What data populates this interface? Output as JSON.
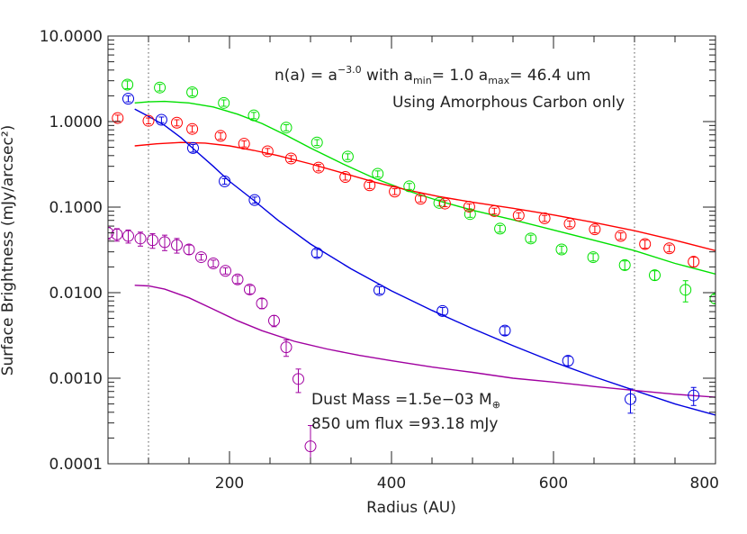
{
  "chart_data": {
    "type": "scatter",
    "xlabel": "Radius (AU)",
    "ylabel": "Surface Brightness (mJy/arcsec²)",
    "xlim": [
      50,
      800
    ],
    "ylim": [
      0.0001,
      10
    ],
    "yscale": "log",
    "x_ticks": [
      200,
      400,
      600,
      800
    ],
    "x_tick_labels": [
      "200",
      "400",
      "600",
      "800"
    ],
    "y_ticks": [
      0.0001,
      0.001,
      0.01,
      0.1,
      1,
      10
    ],
    "y_tick_labels": [
      "0.0001",
      "0.0010",
      "0.0100",
      "0.1000",
      "1.0000",
      "10.0000"
    ],
    "vlines": [
      100,
      700
    ],
    "annotations": {
      "line1": {
        "prefix": "n(a) = a",
        "exp": "−3.0",
        "mid": " with a",
        "sub1": "min",
        "mid2": "= 1.0 a",
        "sub2": "max",
        "suffix": "= 46.4 um"
      },
      "line2": "Using Amorphous Carbon only",
      "line3": {
        "prefix": "Dust Mass =1.5e−03 M",
        "sub": "⊕"
      },
      "line4": "850 um flux =93.18 mJy"
    },
    "series": [
      {
        "color": "#00e000",
        "points": [
          {
            "x": 74,
            "y": 2.7,
            "err": 0.28
          },
          {
            "x": 114,
            "y": 2.5,
            "err": 0.22
          },
          {
            "x": 154,
            "y": 2.2,
            "err": 0.2
          },
          {
            "x": 193,
            "y": 1.65,
            "err": 0.14
          },
          {
            "x": 230,
            "y": 1.18,
            "err": 0.1
          },
          {
            "x": 270,
            "y": 0.85,
            "err": 0.07
          },
          {
            "x": 308,
            "y": 0.57,
            "err": 0.045
          },
          {
            "x": 346,
            "y": 0.39,
            "err": 0.03
          },
          {
            "x": 383,
            "y": 0.245,
            "err": 0.02
          },
          {
            "x": 422,
            "y": 0.175,
            "err": 0.014
          },
          {
            "x": 459,
            "y": 0.112,
            "err": 0.009
          },
          {
            "x": 497,
            "y": 0.083,
            "err": 0.007
          },
          {
            "x": 534,
            "y": 0.056,
            "err": 0.005
          },
          {
            "x": 572,
            "y": 0.043,
            "err": 0.004
          },
          {
            "x": 610,
            "y": 0.032,
            "err": 0.003
          },
          {
            "x": 649,
            "y": 0.026,
            "err": 0.0025
          },
          {
            "x": 688,
            "y": 0.021,
            "err": 0.0025
          },
          {
            "x": 725,
            "y": 0.016,
            "err": 0.002
          },
          {
            "x": 763,
            "y": 0.0108,
            "err": 0.003
          },
          {
            "x": 800,
            "y": 0.0085,
            "err": 0.001
          }
        ],
        "model": [
          {
            "x": 83,
            "y": 1.65
          },
          {
            "x": 100,
            "y": 1.7
          },
          {
            "x": 120,
            "y": 1.72
          },
          {
            "x": 150,
            "y": 1.65
          },
          {
            "x": 180,
            "y": 1.48
          },
          {
            "x": 210,
            "y": 1.22
          },
          {
            "x": 240,
            "y": 0.95
          },
          {
            "x": 270,
            "y": 0.69
          },
          {
            "x": 300,
            "y": 0.49
          },
          {
            "x": 340,
            "y": 0.32
          },
          {
            "x": 380,
            "y": 0.215
          },
          {
            "x": 420,
            "y": 0.155
          },
          {
            "x": 460,
            "y": 0.117
          },
          {
            "x": 500,
            "y": 0.092
          },
          {
            "x": 550,
            "y": 0.071
          },
          {
            "x": 600,
            "y": 0.054
          },
          {
            "x": 650,
            "y": 0.041
          },
          {
            "x": 700,
            "y": 0.031
          },
          {
            "x": 750,
            "y": 0.022
          },
          {
            "x": 800,
            "y": 0.0165
          }
        ]
      },
      {
        "color": "#ff0000",
        "points": [
          {
            "x": 62,
            "y": 1.1,
            "err": 0.09
          },
          {
            "x": 100,
            "y": 1.02,
            "err": 0.08
          },
          {
            "x": 135,
            "y": 0.97,
            "err": 0.08
          },
          {
            "x": 154,
            "y": 0.82,
            "err": 0.07
          },
          {
            "x": 189,
            "y": 0.68,
            "err": 0.06
          },
          {
            "x": 218,
            "y": 0.55,
            "err": 0.045
          },
          {
            "x": 247,
            "y": 0.45,
            "err": 0.035
          },
          {
            "x": 276,
            "y": 0.37,
            "err": 0.03
          },
          {
            "x": 310,
            "y": 0.29,
            "err": 0.025
          },
          {
            "x": 343,
            "y": 0.225,
            "err": 0.018
          },
          {
            "x": 373,
            "y": 0.18,
            "err": 0.015
          },
          {
            "x": 404,
            "y": 0.152,
            "err": 0.012
          },
          {
            "x": 436,
            "y": 0.125,
            "err": 0.01
          },
          {
            "x": 466,
            "y": 0.11,
            "err": 0.009
          },
          {
            "x": 496,
            "y": 0.101,
            "err": 0.008
          },
          {
            "x": 527,
            "y": 0.09,
            "err": 0.007
          },
          {
            "x": 557,
            "y": 0.08,
            "err": 0.006
          },
          {
            "x": 589,
            "y": 0.074,
            "err": 0.006
          },
          {
            "x": 620,
            "y": 0.064,
            "err": 0.005
          },
          {
            "x": 651,
            "y": 0.055,
            "err": 0.005
          },
          {
            "x": 683,
            "y": 0.046,
            "err": 0.004
          },
          {
            "x": 713,
            "y": 0.037,
            "err": 0.004
          },
          {
            "x": 743,
            "y": 0.033,
            "err": 0.003
          },
          {
            "x": 773,
            "y": 0.023,
            "err": 0.003
          }
        ],
        "model": [
          {
            "x": 83,
            "y": 0.52
          },
          {
            "x": 110,
            "y": 0.55
          },
          {
            "x": 140,
            "y": 0.57
          },
          {
            "x": 170,
            "y": 0.56
          },
          {
            "x": 200,
            "y": 0.52
          },
          {
            "x": 230,
            "y": 0.46
          },
          {
            "x": 260,
            "y": 0.4
          },
          {
            "x": 300,
            "y": 0.32
          },
          {
            "x": 340,
            "y": 0.25
          },
          {
            "x": 380,
            "y": 0.195
          },
          {
            "x": 420,
            "y": 0.158
          },
          {
            "x": 460,
            "y": 0.132
          },
          {
            "x": 500,
            "y": 0.114
          },
          {
            "x": 550,
            "y": 0.097
          },
          {
            "x": 600,
            "y": 0.081
          },
          {
            "x": 650,
            "y": 0.066
          },
          {
            "x": 700,
            "y": 0.053
          },
          {
            "x": 750,
            "y": 0.041
          },
          {
            "x": 800,
            "y": 0.031
          }
        ]
      },
      {
        "color": "#0000e0",
        "points": [
          {
            "x": 75,
            "y": 1.85,
            "err": 0.15
          },
          {
            "x": 116,
            "y": 1.05,
            "err": 0.08
          },
          {
            "x": 155,
            "y": 0.49,
            "err": 0.05
          },
          {
            "x": 194,
            "y": 0.2,
            "err": 0.015
          },
          {
            "x": 231,
            "y": 0.121,
            "err": 0.01
          },
          {
            "x": 308,
            "y": 0.029,
            "err": 0.003
          },
          {
            "x": 385,
            "y": 0.0107,
            "err": 0.001
          },
          {
            "x": 463,
            "y": 0.0061,
            "err": 0.0006
          },
          {
            "x": 540,
            "y": 0.0036,
            "err": 0.0004
          },
          {
            "x": 618,
            "y": 0.0016,
            "err": 0.0002
          },
          {
            "x": 695,
            "y": 0.00057,
            "err": 0.00018
          },
          {
            "x": 773,
            "y": 0.00063,
            "err": 0.00015
          }
        ],
        "model": [
          {
            "x": 83,
            "y": 1.4
          },
          {
            "x": 100,
            "y": 1.15
          },
          {
            "x": 120,
            "y": 0.9
          },
          {
            "x": 140,
            "y": 0.65
          },
          {
            "x": 160,
            "y": 0.44
          },
          {
            "x": 180,
            "y": 0.3
          },
          {
            "x": 200,
            "y": 0.2
          },
          {
            "x": 230,
            "y": 0.12
          },
          {
            "x": 260,
            "y": 0.07
          },
          {
            "x": 300,
            "y": 0.037
          },
          {
            "x": 350,
            "y": 0.019
          },
          {
            "x": 400,
            "y": 0.0105
          },
          {
            "x": 450,
            "y": 0.0062
          },
          {
            "x": 500,
            "y": 0.0038
          },
          {
            "x": 550,
            "y": 0.0024
          },
          {
            "x": 600,
            "y": 0.00155
          },
          {
            "x": 650,
            "y": 0.00104
          },
          {
            "x": 700,
            "y": 0.00072
          },
          {
            "x": 750,
            "y": 0.0005
          },
          {
            "x": 800,
            "y": 0.00037
          }
        ]
      },
      {
        "color": "#a000a0",
        "points": [
          {
            "x": 50,
            "y": 0.05,
            "err": 0.008
          },
          {
            "x": 61,
            "y": 0.048,
            "err": 0.008
          },
          {
            "x": 75,
            "y": 0.046,
            "err": 0.008
          },
          {
            "x": 90,
            "y": 0.043,
            "err": 0.008
          },
          {
            "x": 105,
            "y": 0.041,
            "err": 0.008
          },
          {
            "x": 120,
            "y": 0.039,
            "err": 0.008
          },
          {
            "x": 135,
            "y": 0.036,
            "err": 0.007
          },
          {
            "x": 150,
            "y": 0.032,
            "err": 0.004
          },
          {
            "x": 165,
            "y": 0.026,
            "err": 0.002
          },
          {
            "x": 180,
            "y": 0.022,
            "err": 0.002
          },
          {
            "x": 195,
            "y": 0.018,
            "err": 0.0015
          },
          {
            "x": 210,
            "y": 0.0143,
            "err": 0.0015
          },
          {
            "x": 225,
            "y": 0.0109,
            "err": 0.0012
          },
          {
            "x": 240,
            "y": 0.0075,
            "err": 0.001
          },
          {
            "x": 255,
            "y": 0.0047,
            "err": 0.0007
          },
          {
            "x": 270,
            "y": 0.0023,
            "err": 0.0005
          },
          {
            "x": 285,
            "y": 0.00098,
            "err": 0.0003
          },
          {
            "x": 300,
            "y": 0.00016,
            "err": 0.00012
          }
        ],
        "model": [
          {
            "x": 83,
            "y": 0.0122
          },
          {
            "x": 100,
            "y": 0.012
          },
          {
            "x": 120,
            "y": 0.011
          },
          {
            "x": 150,
            "y": 0.0087
          },
          {
            "x": 180,
            "y": 0.0064
          },
          {
            "x": 210,
            "y": 0.0047
          },
          {
            "x": 240,
            "y": 0.0036
          },
          {
            "x": 280,
            "y": 0.0027
          },
          {
            "x": 320,
            "y": 0.0022
          },
          {
            "x": 360,
            "y": 0.00185
          },
          {
            "x": 400,
            "y": 0.0016
          },
          {
            "x": 450,
            "y": 0.00135
          },
          {
            "x": 500,
            "y": 0.00117
          },
          {
            "x": 550,
            "y": 0.001
          },
          {
            "x": 600,
            "y": 0.0009
          },
          {
            "x": 650,
            "y": 0.0008
          },
          {
            "x": 700,
            "y": 0.00072
          },
          {
            "x": 750,
            "y": 0.00065
          },
          {
            "x": 800,
            "y": 0.0006
          }
        ]
      }
    ]
  }
}
